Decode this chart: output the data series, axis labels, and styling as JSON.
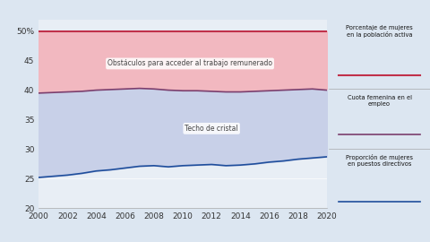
{
  "years": [
    2000,
    2001,
    2002,
    2003,
    2004,
    2005,
    2006,
    2007,
    2008,
    2009,
    2010,
    2011,
    2012,
    2013,
    2014,
    2015,
    2016,
    2017,
    2018,
    2019,
    2020
  ],
  "population_line": [
    50,
    50,
    50,
    50,
    50,
    50,
    50,
    50,
    50,
    50,
    50,
    50,
    50,
    50,
    50,
    50,
    50,
    50,
    50,
    50,
    50
  ],
  "employment_line": [
    39.5,
    39.6,
    39.7,
    39.8,
    40.0,
    40.1,
    40.2,
    40.3,
    40.2,
    40.0,
    39.9,
    39.9,
    39.8,
    39.7,
    39.7,
    39.8,
    39.9,
    40.0,
    40.1,
    40.2,
    40.0
  ],
  "management_line": [
    25.2,
    25.4,
    25.6,
    25.9,
    26.3,
    26.5,
    26.8,
    27.1,
    27.2,
    27.0,
    27.2,
    27.3,
    27.4,
    27.2,
    27.3,
    27.5,
    27.8,
    28.0,
    28.3,
    28.5,
    28.7
  ],
  "ylim": [
    20,
    52
  ],
  "ytick_vals": [
    20,
    25,
    30,
    35,
    40,
    45,
    50
  ],
  "ytick_labels": [
    "20",
    "25",
    "30",
    "35",
    "40",
    "45",
    "50%"
  ],
  "background_color": "#dce6f1",
  "plot_bg_color": "#e8eef5",
  "fill_top_color": "#f2b8c0",
  "fill_bottom_color": "#c8d0e8",
  "line_pop_color": "#c0304a",
  "line_emp_color": "#7b3f6e",
  "line_mgmt_color": "#1f4e9c",
  "legend_bg": "#b0b8c8",
  "label_obstaculos": "Obstáculos para acceder al trabajo remunerado",
  "label_techo": "Techo de cristal",
  "legend1": "Porcentaje de mujeres\nen la población activa",
  "legend2": "Cuota femenina en el\nempleo",
  "legend3": "Proporción de mujeres\nen puestos directivos",
  "xlabel_years": [
    2000,
    2002,
    2004,
    2006,
    2008,
    2010,
    2012,
    2014,
    2016,
    2018,
    2020
  ]
}
